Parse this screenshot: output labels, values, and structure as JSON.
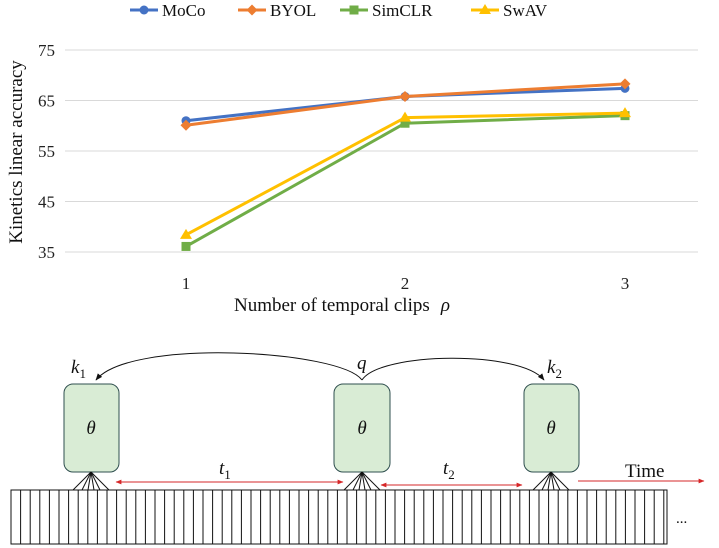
{
  "chart_data": {
    "type": "line",
    "title": "",
    "xlabel": "Number of temporal clips",
    "xlabel_symbol": "ρ",
    "ylabel": "Kinetics linear accuracy",
    "categories": [
      "1",
      "2",
      "3"
    ],
    "x": [
      1,
      2,
      3
    ],
    "ylim": [
      35,
      75
    ],
    "yticks": [
      "35",
      "45",
      "55",
      "65",
      "75"
    ],
    "grid": "horizontal",
    "legend_position": "top",
    "series": [
      {
        "name": "MoCo",
        "color": "#4472C4",
        "marker": "circle",
        "values": [
          61.0,
          65.8,
          67.4
        ]
      },
      {
        "name": "BYOL",
        "color": "#ED7D31",
        "marker": "diamond",
        "values": [
          60.1,
          65.8,
          68.3
        ]
      },
      {
        "name": "SimCLR",
        "color": "#70AD47",
        "marker": "square",
        "values": [
          36.1,
          60.5,
          62.0
        ]
      },
      {
        "name": "SwAV",
        "color": "#FFC000",
        "marker": "triangle",
        "values": [
          38.4,
          61.6,
          62.5
        ]
      }
    ]
  },
  "diagram": {
    "encoder_label": "θ",
    "encoder_box_color": "#d9ecd5",
    "labels": {
      "k1": {
        "base": "k",
        "sub": "1"
      },
      "q": {
        "base": "q"
      },
      "k2": {
        "base": "k",
        "sub": "2"
      },
      "t1": {
        "base": "t",
        "sub": "1"
      },
      "t2": {
        "base": "t",
        "sub": "2"
      }
    },
    "time_label": "Time",
    "ellipsis": "...",
    "arrow_color": "#d62728"
  }
}
